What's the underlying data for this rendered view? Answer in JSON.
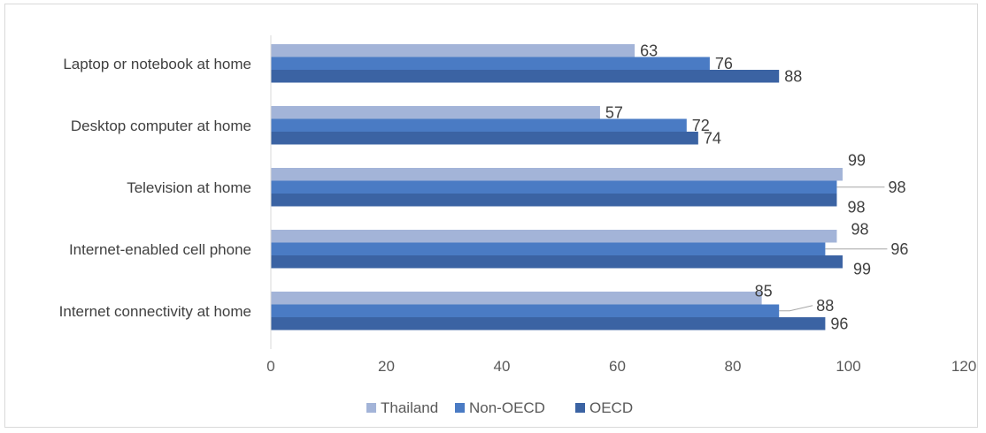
{
  "chart_data": {
    "type": "bar",
    "orientation": "horizontal",
    "categories": [
      "Laptop or notebook at home",
      "Desktop computer at home",
      "Television at home",
      "Internet-enabled cell phone",
      "Internet connectivity at home"
    ],
    "series": [
      {
        "name": "Thailand",
        "color": "#a3b4d8",
        "values": [
          63,
          57,
          99,
          98,
          85
        ]
      },
      {
        "name": "Non-OECD",
        "color": "#4a7bc4",
        "values": [
          76,
          72,
          98,
          96,
          88
        ]
      },
      {
        "name": "OECD",
        "color": "#3b63a3",
        "values": [
          88,
          74,
          98,
          99,
          96
        ]
      }
    ],
    "x_ticks": [
      "0",
      "20",
      "40",
      "60",
      "80",
      "100",
      "120"
    ],
    "xlim": [
      0,
      120
    ],
    "legend_position": "bottom",
    "gridlines": false,
    "data_labels": true
  }
}
